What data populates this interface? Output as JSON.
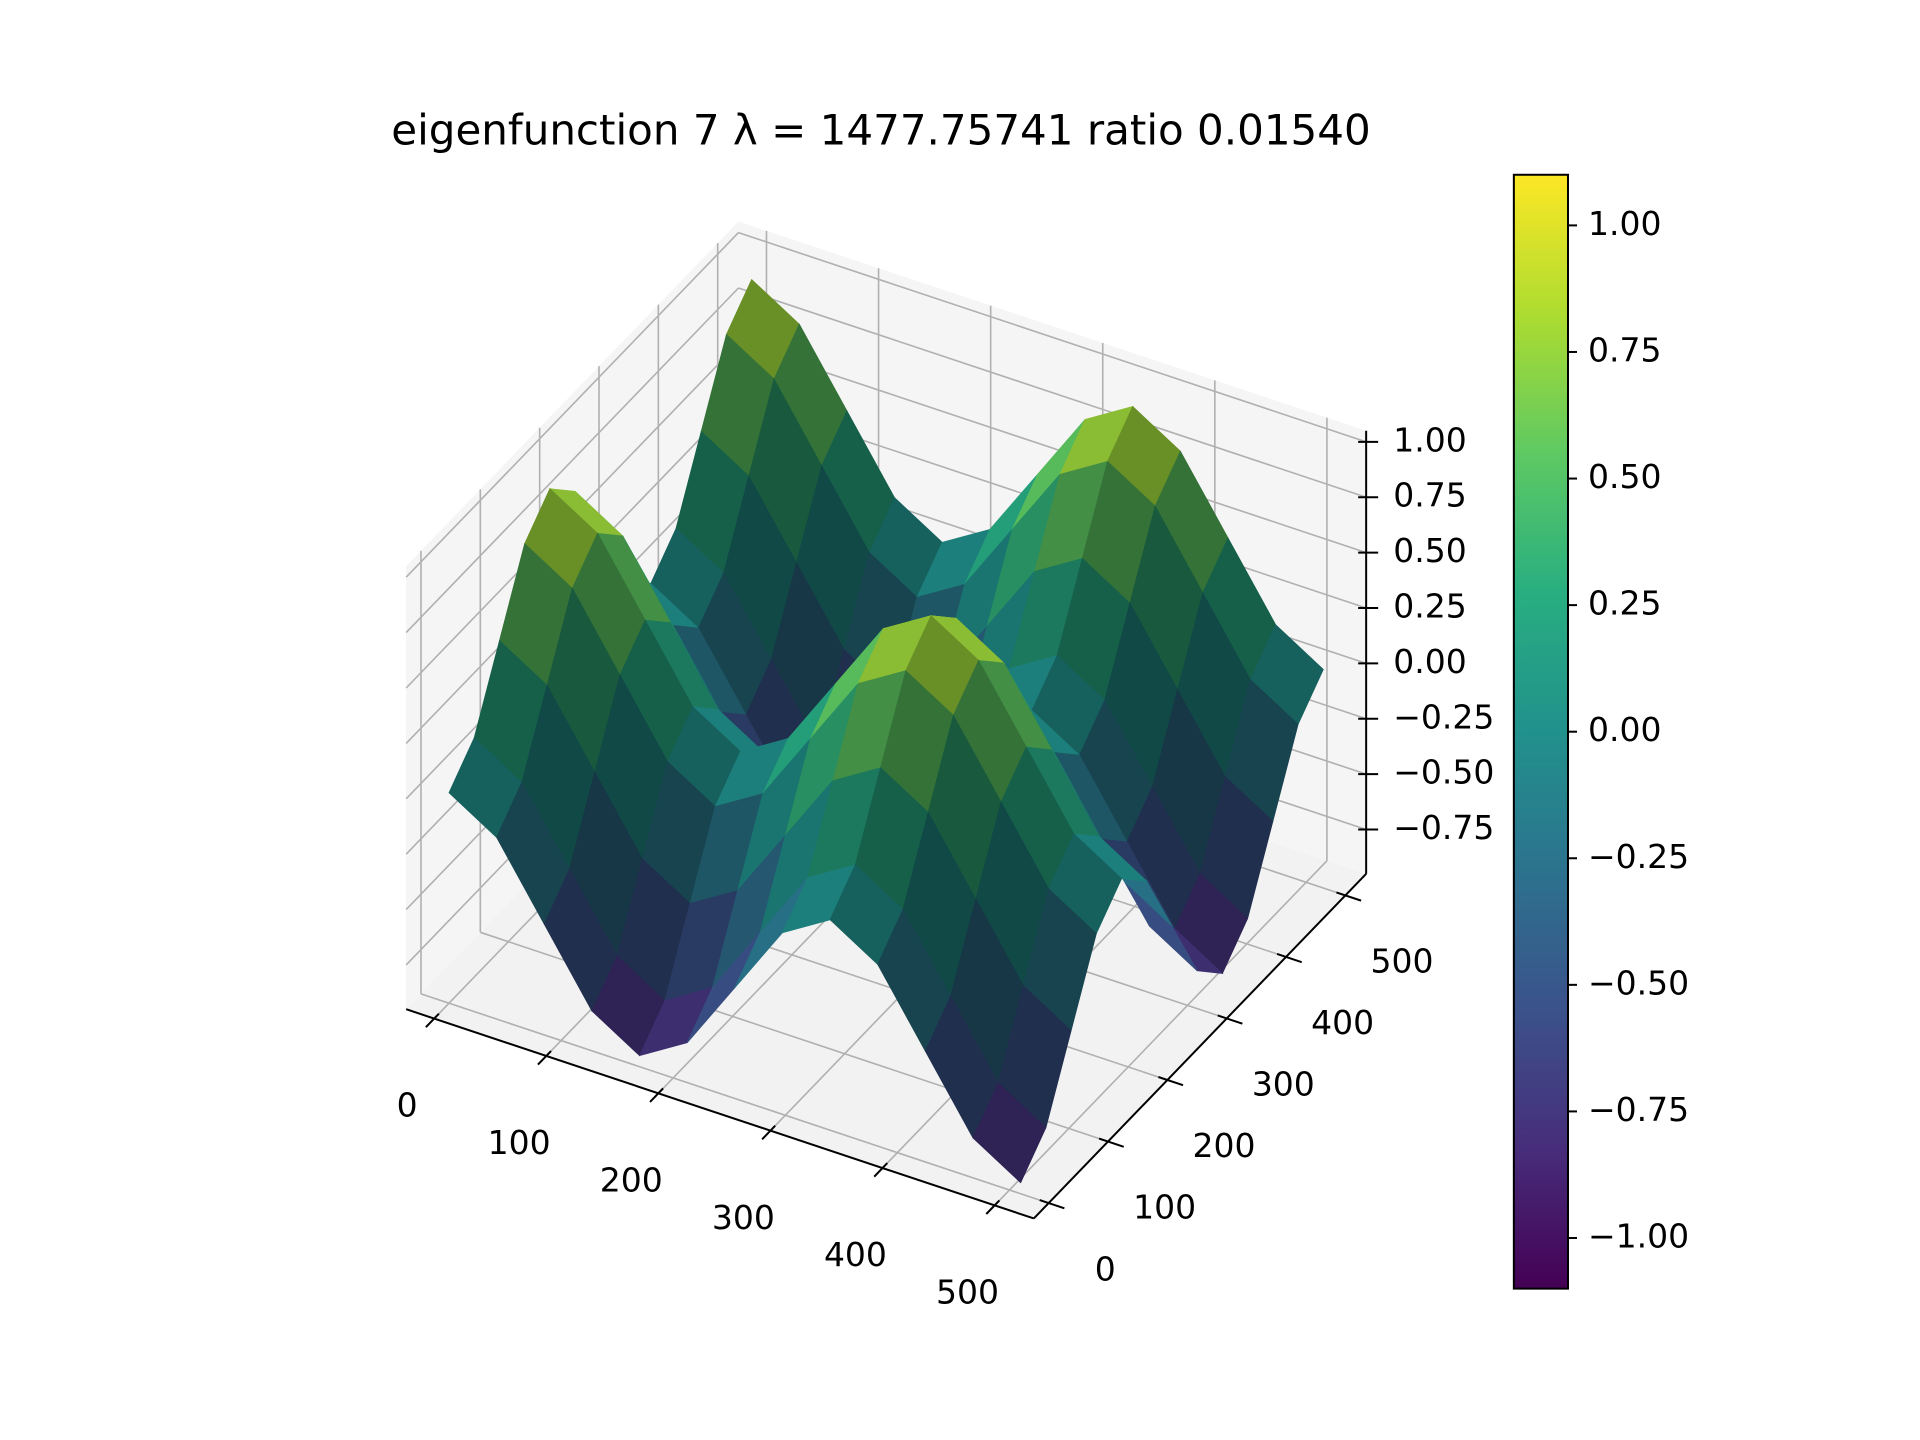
{
  "chart_data": {
    "type": "surface",
    "title": "eigenfunction 7  λ = 1477.75741 ratio 0.01540",
    "x": [
      0,
      42.5,
      85,
      127.5,
      170,
      212.5,
      255,
      297.5,
      340,
      382.5,
      425,
      467.5,
      510
    ],
    "y": [
      0,
      42.5,
      85,
      127.5,
      170,
      212.5,
      255,
      297.5,
      340,
      382.5,
      425,
      467.5,
      510
    ],
    "z": [
      [
        0,
        -0.13,
        -0.45,
        -0.77,
        -0.9,
        -0.77,
        -0.45,
        -0.13,
        0,
        -0.13,
        -0.45,
        -0.77,
        -0.9
      ],
      [
        0.13,
        0,
        -0.32,
        -0.64,
        -0.77,
        -0.64,
        -0.32,
        0,
        0.13,
        0,
        -0.32,
        -0.64,
        -0.77
      ],
      [
        0.45,
        0.32,
        0,
        -0.32,
        -0.45,
        -0.32,
        0,
        0.32,
        0.45,
        0.32,
        0,
        -0.32,
        -0.45
      ],
      [
        0.77,
        0.64,
        0.32,
        0,
        -0.13,
        0,
        0.32,
        0.64,
        0.77,
        0.64,
        0.32,
        0,
        -0.13
      ],
      [
        0.9,
        0.77,
        0.45,
        0.13,
        0,
        0.13,
        0.45,
        0.77,
        0.9,
        0.77,
        0.45,
        0.13,
        0
      ],
      [
        0.77,
        0.64,
        0.32,
        0,
        -0.13,
        0,
        0.32,
        0.64,
        0.77,
        0.64,
        0.32,
        0,
        -0.13
      ],
      [
        0.45,
        0.32,
        0,
        -0.32,
        -0.45,
        -0.32,
        0,
        0.32,
        0.45,
        0.32,
        0,
        -0.32,
        -0.45
      ],
      [
        0.13,
        0,
        -0.32,
        -0.64,
        -0.77,
        -0.64,
        -0.32,
        0,
        0.13,
        0,
        -0.32,
        -0.64,
        -0.77
      ],
      [
        0,
        -0.13,
        -0.45,
        -0.77,
        -0.9,
        -0.77,
        -0.45,
        -0.13,
        0,
        -0.13,
        -0.45,
        -0.77,
        -0.9
      ],
      [
        0.13,
        0,
        -0.32,
        -0.64,
        -0.77,
        -0.64,
        -0.32,
        0,
        0.13,
        0,
        -0.32,
        -0.64,
        -0.77
      ],
      [
        0.45,
        0.32,
        0,
        -0.32,
        -0.45,
        -0.32,
        0,
        0.32,
        0.45,
        0.32,
        0,
        -0.32,
        -0.45
      ],
      [
        0.77,
        0.64,
        0.32,
        0,
        -0.13,
        0,
        0.32,
        0.64,
        0.77,
        0.64,
        0.32,
        0,
        -0.13
      ],
      [
        0.9,
        0.77,
        0.45,
        0.13,
        0,
        0.13,
        0.45,
        0.77,
        0.9,
        0.77,
        0.45,
        0.13,
        0
      ]
    ],
    "xlim": [
      -25,
      535
    ],
    "ylim": [
      -25,
      535
    ],
    "zlim": [
      -0.95,
      1.05
    ],
    "xticks": [
      0,
      100,
      200,
      300,
      400,
      500
    ],
    "yticks": [
      0,
      100,
      200,
      300,
      400,
      500
    ],
    "zticks": [
      {
        "value": -0.75,
        "label": "−0.75"
      },
      {
        "value": -0.5,
        "label": "−0.50"
      },
      {
        "value": -0.25,
        "label": "−0.25"
      },
      {
        "value": 0,
        "label": "0.00"
      },
      {
        "value": 0.25,
        "label": "0.25"
      },
      {
        "value": 0.5,
        "label": "0.50"
      },
      {
        "value": 0.75,
        "label": "0.75"
      },
      {
        "value": 1,
        "label": "1.00"
      }
    ],
    "cmap": "viridis",
    "grid": true,
    "colorbar": {
      "clim": [
        -1.1,
        1.1
      ],
      "ticks": [
        {
          "value": -1,
          "label": "−1.00"
        },
        {
          "value": -0.75,
          "label": "−0.75"
        },
        {
          "value": -0.5,
          "label": "−0.50"
        },
        {
          "value": -0.25,
          "label": "−0.25"
        },
        {
          "value": 0,
          "label": "0.00"
        },
        {
          "value": 0.25,
          "label": "0.25"
        },
        {
          "value": 0.5,
          "label": "0.50"
        },
        {
          "value": 0.75,
          "label": "0.75"
        },
        {
          "value": 1,
          "label": "1.00"
        }
      ]
    }
  }
}
